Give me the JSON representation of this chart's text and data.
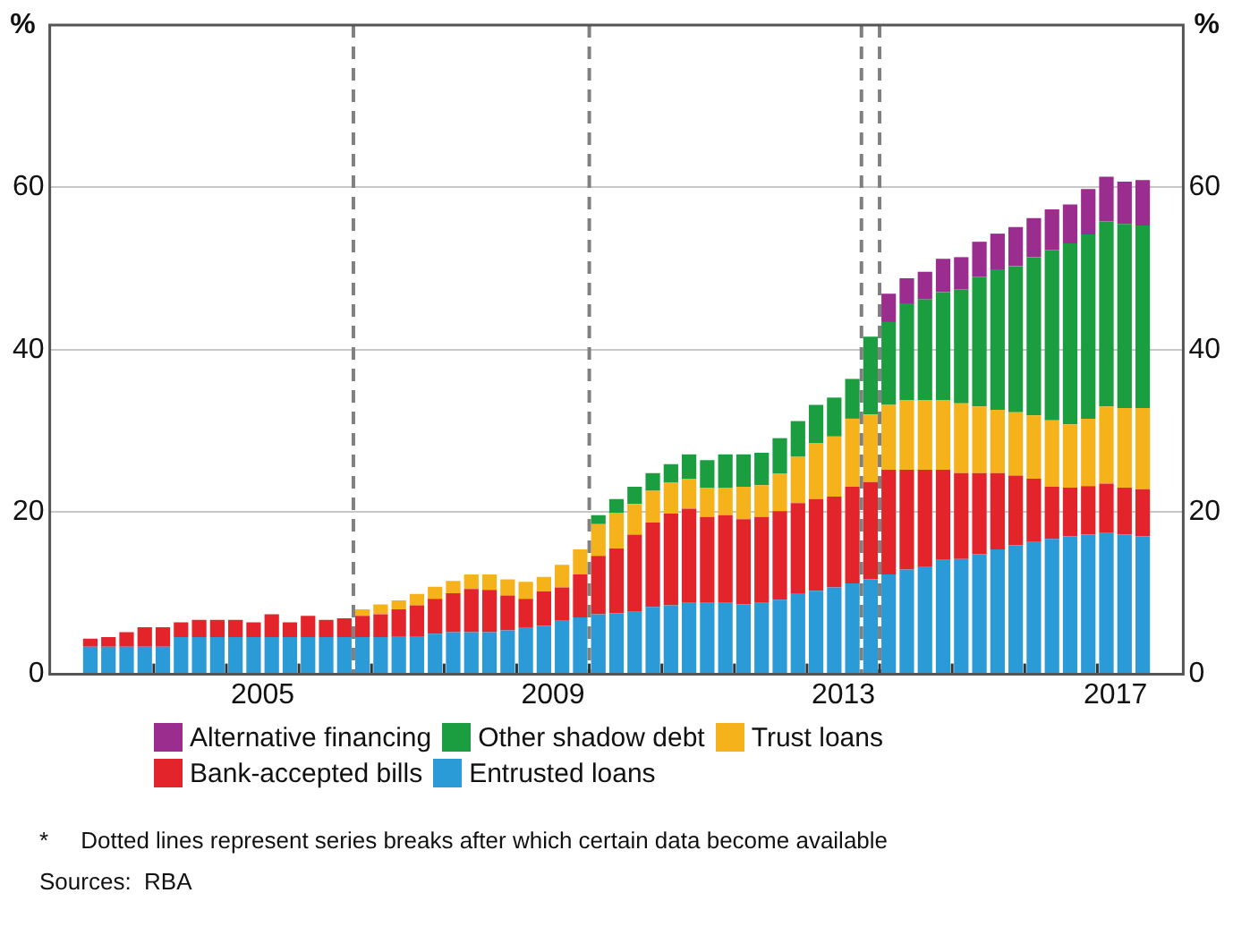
{
  "chart_data": {
    "type": "bar",
    "stacked": true,
    "ylabel": "%",
    "y2label": "%",
    "x": [
      2003.125,
      2003.375,
      2003.625,
      2003.875,
      2004.125,
      2004.375,
      2004.625,
      2004.875,
      2005.125,
      2005.375,
      2005.625,
      2005.875,
      2006.125,
      2006.375,
      2006.625,
      2006.875,
      2007.125,
      2007.375,
      2007.625,
      2007.875,
      2008.125,
      2008.375,
      2008.625,
      2008.875,
      2009.125,
      2009.375,
      2009.625,
      2009.875,
      2010.125,
      2010.375,
      2010.625,
      2010.875,
      2011.125,
      2011.375,
      2011.625,
      2011.875,
      2012.125,
      2012.375,
      2012.625,
      2012.875,
      2013.125,
      2013.375,
      2013.625,
      2013.875,
      2014.125,
      2014.375,
      2014.625,
      2014.875,
      2015.125,
      2015.375,
      2015.625,
      2015.875,
      2016.125,
      2016.375,
      2016.625,
      2016.875,
      2017.125,
      2017.375,
      2017.625
    ],
    "xlim": [
      2003,
      2017.75
    ],
    "xticks": [
      {
        "value": 2004,
        "label": null
      },
      {
        "value": 2005,
        "label": null
      },
      {
        "value": 2005.5,
        "label": "2005"
      },
      {
        "value": 2006,
        "label": null
      },
      {
        "value": 2007,
        "label": null
      },
      {
        "value": 2008,
        "label": null
      },
      {
        "value": 2009,
        "label": null
      },
      {
        "value": 2009.5,
        "label": "2009"
      },
      {
        "value": 2010,
        "label": null
      },
      {
        "value": 2011,
        "label": null
      },
      {
        "value": 2012,
        "label": null
      },
      {
        "value": 2013,
        "label": null
      },
      {
        "value": 2013.5,
        "label": "2013"
      },
      {
        "value": 2014,
        "label": null
      },
      {
        "value": 2015,
        "label": null
      },
      {
        "value": 2016,
        "label": null
      },
      {
        "value": 2017,
        "label": null
      },
      {
        "value": 2017.25,
        "label": "2017"
      }
    ],
    "ylim": [
      0,
      80
    ],
    "yticks": [
      0,
      20,
      40,
      60
    ],
    "y2lim": [
      0,
      80
    ],
    "y2ticks": [
      0,
      20,
      40,
      60
    ],
    "grid": "y",
    "legend": "bottom",
    "series": [
      {
        "name": "Entrusted loans",
        "color": "#2a9bd7",
        "values": [
          3.4,
          3.4,
          3.4,
          3.4,
          3.4,
          4.6,
          4.6,
          4.6,
          4.6,
          4.6,
          4.6,
          4.6,
          4.6,
          4.6,
          4.6,
          4.6,
          4.6,
          4.7,
          4.7,
          5.0,
          5.2,
          5.2,
          5.2,
          5.4,
          5.8,
          6.0,
          6.6,
          7.0,
          7.4,
          7.5,
          7.7,
          8.3,
          8.5,
          8.8,
          8.8,
          8.8,
          8.6,
          8.8,
          9.2,
          10.0,
          10.3,
          10.7,
          11.2,
          11.7,
          12.3,
          12.9,
          13.3,
          14.1,
          14.2,
          14.8,
          15.4,
          15.9,
          16.3,
          16.7,
          17.0,
          17.2,
          17.4,
          17.2,
          17.0
        ]
      },
      {
        "name": "Bank-accepted bills",
        "color": "#e3242b",
        "values": [
          1.0,
          1.2,
          1.8,
          2.4,
          2.4,
          1.8,
          2.1,
          2.1,
          2.1,
          1.8,
          2.8,
          1.8,
          2.6,
          2.1,
          2.3,
          2.6,
          2.8,
          3.3,
          3.8,
          4.3,
          4.8,
          5.3,
          5.2,
          4.3,
          3.5,
          4.2,
          4.1,
          5.3,
          7.2,
          8.0,
          9.5,
          10.4,
          11.3,
          11.6,
          10.6,
          10.8,
          10.5,
          10.6,
          10.9,
          11.1,
          11.3,
          11.2,
          11.9,
          12.0,
          12.9,
          12.3,
          11.9,
          11.1,
          10.6,
          10.0,
          9.4,
          8.6,
          7.8,
          6.4,
          6.0,
          6.0,
          6.1,
          5.8,
          5.8
        ]
      },
      {
        "name": "Trust loans",
        "color": "#f5b21b",
        "values": [
          null,
          null,
          null,
          null,
          null,
          null,
          null,
          null,
          null,
          null,
          null,
          null,
          null,
          null,
          null,
          0.8,
          1.2,
          1.1,
          1.4,
          1.5,
          1.5,
          1.8,
          1.9,
          2.0,
          2.1,
          1.8,
          2.8,
          3.1,
          3.9,
          4.4,
          3.8,
          3.9,
          3.8,
          3.7,
          3.6,
          3.4,
          4.0,
          3.9,
          4.6,
          5.7,
          6.9,
          7.4,
          8.4,
          8.3,
          8.0,
          8.6,
          8.6,
          8.6,
          8.6,
          8.2,
          7.8,
          7.8,
          7.8,
          8.2,
          7.8,
          8.3,
          9.5,
          9.8,
          10.0
        ]
      },
      {
        "name": "Other shadow debt",
        "color": "#1a9e3f",
        "values": [
          null,
          null,
          null,
          null,
          null,
          null,
          null,
          null,
          null,
          null,
          null,
          null,
          null,
          null,
          null,
          null,
          null,
          null,
          null,
          null,
          null,
          null,
          null,
          null,
          null,
          null,
          null,
          null,
          1.1,
          1.7,
          2.1,
          2.2,
          2.3,
          3.0,
          3.4,
          4.1,
          4.0,
          4.0,
          4.4,
          4.4,
          4.7,
          4.8,
          4.9,
          9.6,
          10.2,
          11.9,
          12.4,
          13.3,
          14.0,
          16.0,
          17.3,
          18.0,
          19.5,
          21.0,
          22.3,
          22.7,
          22.8,
          22.7,
          22.5
        ]
      },
      {
        "name": "Alternative financing",
        "color": "#9b2d8f",
        "values": [
          null,
          null,
          null,
          null,
          null,
          null,
          null,
          null,
          null,
          null,
          null,
          null,
          null,
          null,
          null,
          null,
          null,
          null,
          null,
          null,
          null,
          null,
          null,
          null,
          null,
          null,
          null,
          null,
          null,
          null,
          null,
          null,
          null,
          null,
          null,
          null,
          null,
          null,
          null,
          null,
          null,
          null,
          null,
          null,
          3.5,
          3.1,
          3.4,
          4.1,
          4.0,
          4.3,
          4.4,
          4.8,
          4.8,
          5.0,
          4.8,
          5.6,
          5.5,
          5.2,
          5.6
        ]
      }
    ],
    "ref_lines": [
      {
        "axis": "x",
        "value": 2006.75,
        "color": "#808080",
        "line_style": "dashed"
      },
      {
        "axis": "x",
        "value": 2010,
        "color": "#808080",
        "line_style": "dashed"
      },
      {
        "axis": "x",
        "value": 2013.75,
        "color": "#808080",
        "line_style": "dashed"
      },
      {
        "axis": "x",
        "value": 2014,
        "color": "#808080",
        "line_style": "dashed"
      }
    ],
    "annotations": [
      "*     Dotted lines represent series breaks after which certain data become available",
      "Sources:  RBA"
    ]
  }
}
